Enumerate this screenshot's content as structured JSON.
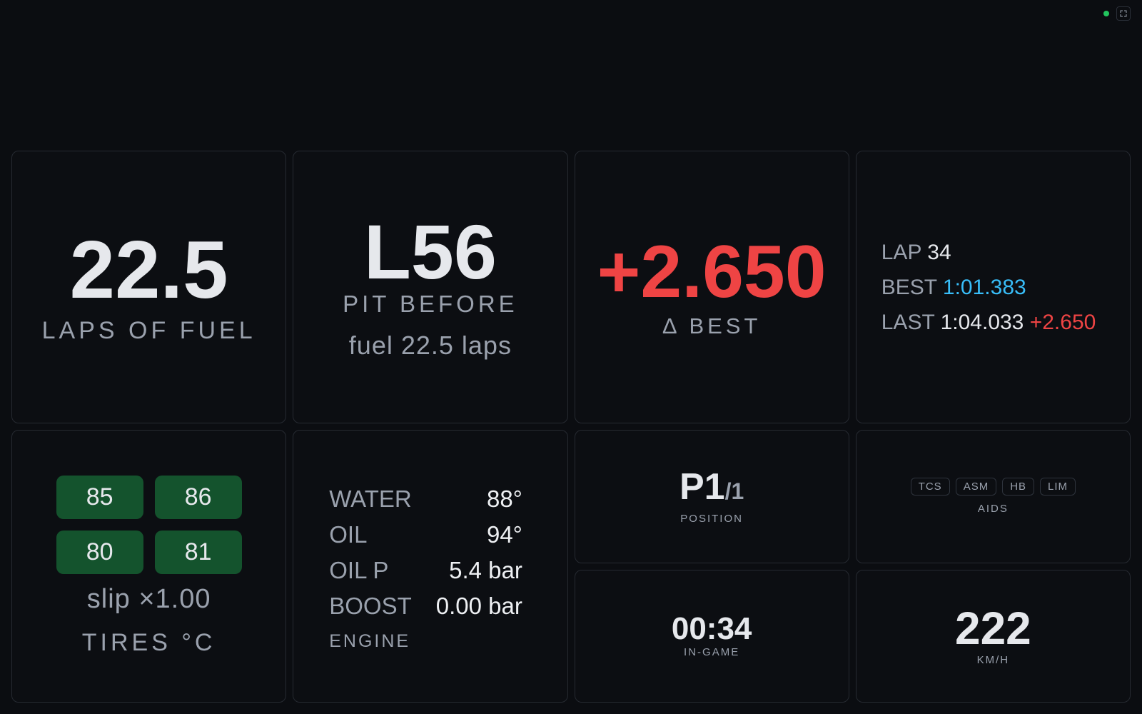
{
  "fuel": {
    "value": "22.5",
    "label": "LAPS OF FUEL"
  },
  "pit": {
    "value": "L56",
    "label": "PIT BEFORE",
    "note": "fuel 22.5 laps"
  },
  "delta": {
    "value": "+2.650",
    "label": "Δ BEST"
  },
  "laps": {
    "rows": [
      {
        "label": "LAP",
        "value": "34"
      },
      {
        "label": "BEST",
        "value": "1:01.383"
      },
      {
        "label": "LAST",
        "value": "1:04.033",
        "delta": "+2.650"
      }
    ]
  },
  "tires": {
    "temps": [
      "85",
      "86",
      "80",
      "81"
    ],
    "slip": "slip ×1.00",
    "label": "TIRES °C"
  },
  "engine": {
    "rows": [
      [
        "WATER",
        "88°"
      ],
      [
        "OIL",
        "94°"
      ],
      [
        "OIL P",
        "5.4 bar"
      ],
      [
        "BOOST",
        "0.00 bar"
      ]
    ],
    "label": "ENGINE"
  },
  "position": {
    "value": "P1",
    "total": "/1",
    "label": "POSITION"
  },
  "aids": {
    "items": [
      "TCS",
      "ASM",
      "HB",
      "LIM"
    ],
    "label": "AIDS"
  },
  "clock": {
    "value": "00:34",
    "label": "IN-GAME"
  },
  "speed": {
    "value": "222",
    "label": "KM/H"
  }
}
